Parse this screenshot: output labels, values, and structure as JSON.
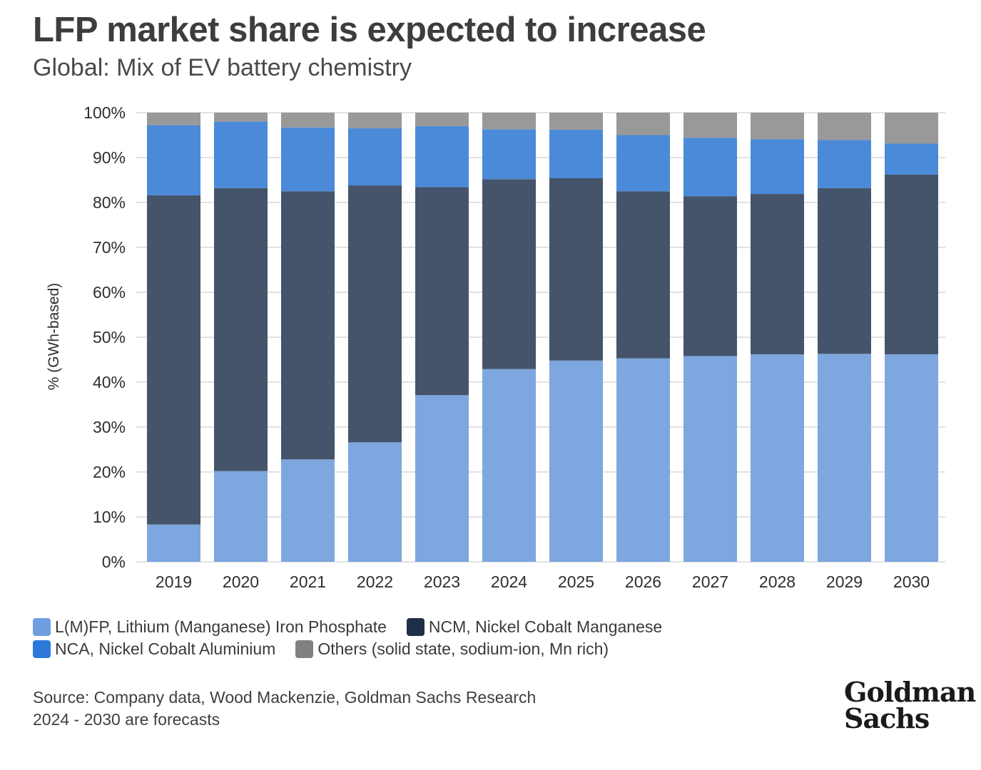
{
  "header": {
    "title": "LFP market share is expected to increase",
    "subtitle": "Global: Mix of EV battery chemistry"
  },
  "chart_data": {
    "type": "bar",
    "stacked": true,
    "title": "LFP market share is expected to increase",
    "subtitle": "Global: Mix of EV battery chemistry",
    "xlabel": "",
    "ylabel": "% (GWh-based)",
    "ylim": [
      0,
      100
    ],
    "yticks": [
      0,
      10,
      20,
      30,
      40,
      50,
      60,
      70,
      80,
      90,
      100
    ],
    "ytick_labels": [
      "0%",
      "10%",
      "20%",
      "30%",
      "40%",
      "50%",
      "60%",
      "70%",
      "80%",
      "90%",
      "100%"
    ],
    "grid": true,
    "categories": [
      "2019",
      "2020",
      "2021",
      "2022",
      "2023",
      "2024",
      "2025",
      "2026",
      "2027",
      "2028",
      "2029",
      "2030"
    ],
    "series": [
      {
        "name": "L(M)FP, Lithium (Manganese) Iron Phosphate",
        "color": "#7ea7df",
        "values": [
          8.3,
          20.2,
          22.8,
          26.6,
          37.1,
          42.9,
          44.8,
          45.3,
          45.8,
          46.2,
          46.3,
          46.2
        ]
      },
      {
        "name": "NCM, Nickel Cobalt Manganese",
        "color": "#45546a",
        "values": [
          73.3,
          63.0,
          59.7,
          57.2,
          46.3,
          42.3,
          40.6,
          37.2,
          35.6,
          35.7,
          36.9,
          40.0
        ]
      },
      {
        "name": "NCA, Nickel Cobalt Aluminium",
        "color": "#4a8ad8",
        "values": [
          15.6,
          14.8,
          14.2,
          12.7,
          13.6,
          11.1,
          10.8,
          12.5,
          13.0,
          12.2,
          10.7,
          6.9
        ]
      },
      {
        "name": "Others (solid state, sodium-ion, Mn rich)",
        "color": "#999999",
        "values": [
          2.8,
          2.0,
          3.3,
          3.5,
          3.0,
          3.7,
          3.8,
          5.0,
          5.6,
          5.9,
          6.1,
          6.9
        ]
      }
    ],
    "legend_position": "bottom-left"
  },
  "legend": {
    "items": [
      {
        "label": "L(M)FP, Lithium (Manganese) Iron Phosphate",
        "color": "#6f9ee0"
      },
      {
        "label": "NCM, Nickel Cobalt Manganese",
        "color": "#1f2f47"
      },
      {
        "label": "NCA, Nickel Cobalt Aluminium",
        "color": "#2d79d9"
      },
      {
        "label": "Others (solid state, sodium-ion, Mn rich)",
        "color": "#808080"
      }
    ]
  },
  "footer": {
    "source": "Source: Company data, Wood Mackenzie, Goldman Sachs Research",
    "note": "2024 - 2030 are forecasts",
    "logo_line1": "Goldman",
    "logo_line2": "Sachs"
  }
}
